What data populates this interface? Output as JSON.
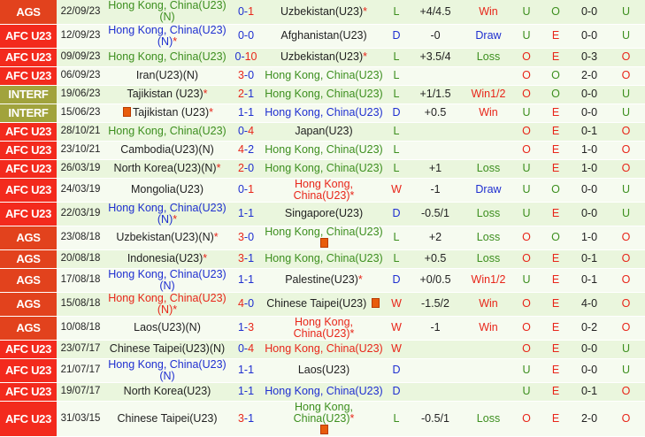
{
  "colors": {
    "ags": "#e2421d",
    "afc": "#f32a1d",
    "interf": "#a1a33c",
    "win": "#e8261a",
    "draw": "#1f2fd0",
    "loss": "#3d8f1f"
  },
  "rows": [
    {
      "comp": "AGS",
      "date": "22/09/23",
      "home": "Hong Kong, China(U23)(N)",
      "home_star": false,
      "home_flag": false,
      "hs": "0",
      "as": "1",
      "away": "Uzbekistan(U23)",
      "away_star": true,
      "away_flag": false,
      "res": "L",
      "hcp": "+4/4.5",
      "outcome": "Win",
      "uo": "U",
      "eo": "O",
      "ht": "0-0",
      "last": "U"
    },
    {
      "comp": "AFC U23",
      "date": "12/09/23",
      "home": "Hong Kong, China(U23)(N)",
      "home_star": true,
      "home_flag": false,
      "hs": "0",
      "as": "0",
      "away": "Afghanistan(U23)",
      "away_star": false,
      "away_flag": false,
      "res": "D",
      "hcp": "-0",
      "outcome": "Draw",
      "uo": "U",
      "eo": "E",
      "ht": "0-0",
      "last": "U"
    },
    {
      "comp": "AFC U23",
      "date": "09/09/23",
      "home": "Hong Kong, China(U23)",
      "home_star": false,
      "home_flag": false,
      "hs": "0",
      "as": "10",
      "away": "Uzbekistan(U23)",
      "away_star": true,
      "away_flag": false,
      "res": "L",
      "hcp": "+3.5/4",
      "outcome": "Loss",
      "uo": "O",
      "eo": "E",
      "ht": "0-3",
      "last": "O"
    },
    {
      "comp": "AFC U23",
      "date": "06/09/23",
      "home": "Iran(U23)(N)",
      "home_star": false,
      "home_flag": false,
      "hs": "3",
      "as": "0",
      "away": "Hong Kong, China(U23)",
      "away_star": false,
      "away_flag": false,
      "res": "L",
      "hcp": "",
      "outcome": "",
      "uo": "O",
      "eo": "O",
      "ht": "2-0",
      "last": "O"
    },
    {
      "comp": "INTERF",
      "date": "19/06/23",
      "home": "Tajikistan (U23)",
      "home_star": true,
      "home_flag": false,
      "hs": "2",
      "as": "1",
      "away": "Hong Kong, China(U23)",
      "away_star": false,
      "away_flag": false,
      "res": "L",
      "hcp": "+1/1.5",
      "outcome": "Win1/2",
      "uo": "O",
      "eo": "O",
      "ht": "0-0",
      "last": "U"
    },
    {
      "comp": "INTERF",
      "date": "15/06/23",
      "home": "Tajikistan (U23)",
      "home_star": true,
      "home_flag": true,
      "hs": "1",
      "as": "1",
      "away": "Hong Kong, China(U23)",
      "away_star": false,
      "away_flag": false,
      "res": "D",
      "hcp": "+0.5",
      "outcome": "Win",
      "uo": "U",
      "eo": "E",
      "ht": "0-0",
      "last": "U"
    },
    {
      "comp": "AFC U23",
      "date": "28/10/21",
      "home": "Hong Kong, China(U23)",
      "home_star": false,
      "home_flag": false,
      "hs": "0",
      "as": "4",
      "away": "Japan(U23)",
      "away_star": false,
      "away_flag": false,
      "res": "L",
      "hcp": "",
      "outcome": "",
      "uo": "O",
      "eo": "E",
      "ht": "0-1",
      "last": "O"
    },
    {
      "comp": "AFC U23",
      "date": "23/10/21",
      "home": "Cambodia(U23)(N)",
      "home_star": false,
      "home_flag": false,
      "hs": "4",
      "as": "2",
      "away": "Hong Kong, China(U23)",
      "away_star": false,
      "away_flag": false,
      "res": "L",
      "hcp": "",
      "outcome": "",
      "uo": "O",
      "eo": "E",
      "ht": "1-0",
      "last": "O"
    },
    {
      "comp": "AFC U23",
      "date": "26/03/19",
      "home": "North Korea(U23)(N)",
      "home_star": true,
      "home_flag": false,
      "hs": "2",
      "as": "0",
      "away": "Hong Kong, China(U23)",
      "away_star": false,
      "away_flag": false,
      "res": "L",
      "hcp": "+1",
      "outcome": "Loss",
      "uo": "U",
      "eo": "E",
      "ht": "1-0",
      "last": "O"
    },
    {
      "comp": "AFC U23",
      "date": "24/03/19",
      "home": "Mongolia(U23)",
      "home_star": false,
      "home_flag": false,
      "hs": "0",
      "as": "1",
      "away": "Hong Kong, China(U23)",
      "away_star": true,
      "away_flag": false,
      "res": "W",
      "hcp": "-1",
      "outcome": "Draw",
      "uo": "U",
      "eo": "O",
      "ht": "0-0",
      "last": "U"
    },
    {
      "comp": "AFC U23",
      "date": "22/03/19",
      "home": "Hong Kong, China(U23)(N)",
      "home_star": true,
      "home_flag": false,
      "hs": "1",
      "as": "1",
      "away": "Singapore(U23)",
      "away_star": false,
      "away_flag": false,
      "res": "D",
      "hcp": "-0.5/1",
      "outcome": "Loss",
      "uo": "U",
      "eo": "E",
      "ht": "0-0",
      "last": "U"
    },
    {
      "comp": "AGS",
      "date": "23/08/18",
      "home": "Uzbekistan(U23)(N)",
      "home_star": true,
      "home_flag": false,
      "hs": "3",
      "as": "0",
      "away": "Hong Kong, China(U23)",
      "away_star": false,
      "away_flag": true,
      "res": "L",
      "hcp": "+2",
      "outcome": "Loss",
      "uo": "O",
      "eo": "O",
      "ht": "1-0",
      "last": "O"
    },
    {
      "comp": "AGS",
      "date": "20/08/18",
      "home": "Indonesia(U23)",
      "home_star": true,
      "home_flag": false,
      "hs": "3",
      "as": "1",
      "away": "Hong Kong, China(U23)",
      "away_star": false,
      "away_flag": false,
      "res": "L",
      "hcp": "+0.5",
      "outcome": "Loss",
      "uo": "O",
      "eo": "E",
      "ht": "0-1",
      "last": "O"
    },
    {
      "comp": "AGS",
      "date": "17/08/18",
      "home": "Hong Kong, China(U23)(N)",
      "home_star": false,
      "home_flag": false,
      "hs": "1",
      "as": "1",
      "away": "Palestine(U23)",
      "away_star": true,
      "away_flag": false,
      "res": "D",
      "hcp": "+0/0.5",
      "outcome": "Win1/2",
      "uo": "U",
      "eo": "E",
      "ht": "0-1",
      "last": "O"
    },
    {
      "comp": "AGS",
      "date": "15/08/18",
      "home": "Hong Kong, China(U23)(N)",
      "home_star": true,
      "home_flag": false,
      "hs": "4",
      "as": "0",
      "away": "Chinese Taipei(U23)",
      "away_star": false,
      "away_flag": true,
      "res": "W",
      "hcp": "-1.5/2",
      "outcome": "Win",
      "uo": "O",
      "eo": "E",
      "ht": "4-0",
      "last": "O"
    },
    {
      "comp": "AGS",
      "date": "10/08/18",
      "home": "Laos(U23)(N)",
      "home_star": false,
      "home_flag": false,
      "hs": "1",
      "as": "3",
      "away": "Hong Kong, China(U23)",
      "away_star": true,
      "away_flag": false,
      "res": "W",
      "hcp": "-1",
      "outcome": "Win",
      "uo": "O",
      "eo": "E",
      "ht": "0-2",
      "last": "O"
    },
    {
      "comp": "AFC U23",
      "date": "23/07/17",
      "home": "Chinese Taipei(U23)(N)",
      "home_star": false,
      "home_flag": false,
      "hs": "0",
      "as": "4",
      "away": "Hong Kong, China(U23)",
      "away_star": false,
      "away_flag": false,
      "res": "W",
      "hcp": "",
      "outcome": "",
      "uo": "O",
      "eo": "E",
      "ht": "0-0",
      "last": "U"
    },
    {
      "comp": "AFC U23",
      "date": "21/07/17",
      "home": "Hong Kong, China(U23)(N)",
      "home_star": false,
      "home_flag": false,
      "hs": "1",
      "as": "1",
      "away": "Laos(U23)",
      "away_star": false,
      "away_flag": false,
      "res": "D",
      "hcp": "",
      "outcome": "",
      "uo": "U",
      "eo": "E",
      "ht": "0-0",
      "last": "U"
    },
    {
      "comp": "AFC U23",
      "date": "19/07/17",
      "home": "North Korea(U23)",
      "home_star": false,
      "home_flag": false,
      "hs": "1",
      "as": "1",
      "away": "Hong Kong, China(U23)",
      "away_star": false,
      "away_flag": false,
      "res": "D",
      "hcp": "",
      "outcome": "",
      "uo": "U",
      "eo": "E",
      "ht": "0-1",
      "last": "O"
    },
    {
      "comp": "AFC U23",
      "date": "31/03/15",
      "home": "Chinese Taipei(U23)",
      "home_star": false,
      "home_flag": false,
      "hs": "3",
      "as": "1",
      "away": "Hong Kong, China(U23)",
      "away_star": true,
      "away_flag": true,
      "res": "L",
      "hcp": "-0.5/1",
      "outcome": "Loss",
      "uo": "O",
      "eo": "E",
      "ht": "2-0",
      "last": "O"
    }
  ]
}
